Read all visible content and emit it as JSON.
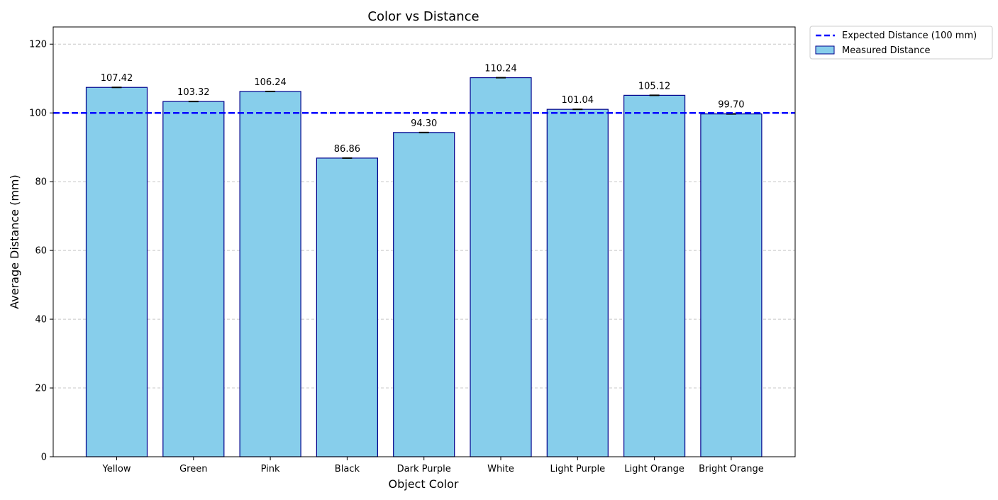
{
  "chart_data": {
    "type": "bar",
    "title": "Color vs Distance",
    "xlabel": "Object Color",
    "ylabel": "Average Distance (mm)",
    "categories": [
      "Yellow",
      "Green",
      "Pink",
      "Black",
      "Dark Purple",
      "White",
      "Light Purple",
      "Light Orange",
      "Bright Orange"
    ],
    "series": [
      {
        "name": "Measured Distance",
        "values": [
          107.42,
          103.32,
          106.24,
          86.86,
          94.3,
          110.24,
          101.04,
          105.12,
          99.7
        ],
        "value_labels": [
          "107.42",
          "103.32",
          "106.24",
          "86.86",
          "94.30",
          "110.24",
          "101.04",
          "105.12",
          "99.70"
        ],
        "color": "#87ceeb",
        "edge_color": "#00008b"
      }
    ],
    "reference_line": {
      "name": "Expected Distance (100 mm)",
      "y": 100,
      "color": "#0000ff",
      "style": "dashed"
    },
    "ylim": [
      0,
      125
    ],
    "yticks": [
      0,
      20,
      40,
      60,
      80,
      100,
      120
    ],
    "grid": "horizontal dashed",
    "legend_position": "outside top-right",
    "error_bars": true
  }
}
